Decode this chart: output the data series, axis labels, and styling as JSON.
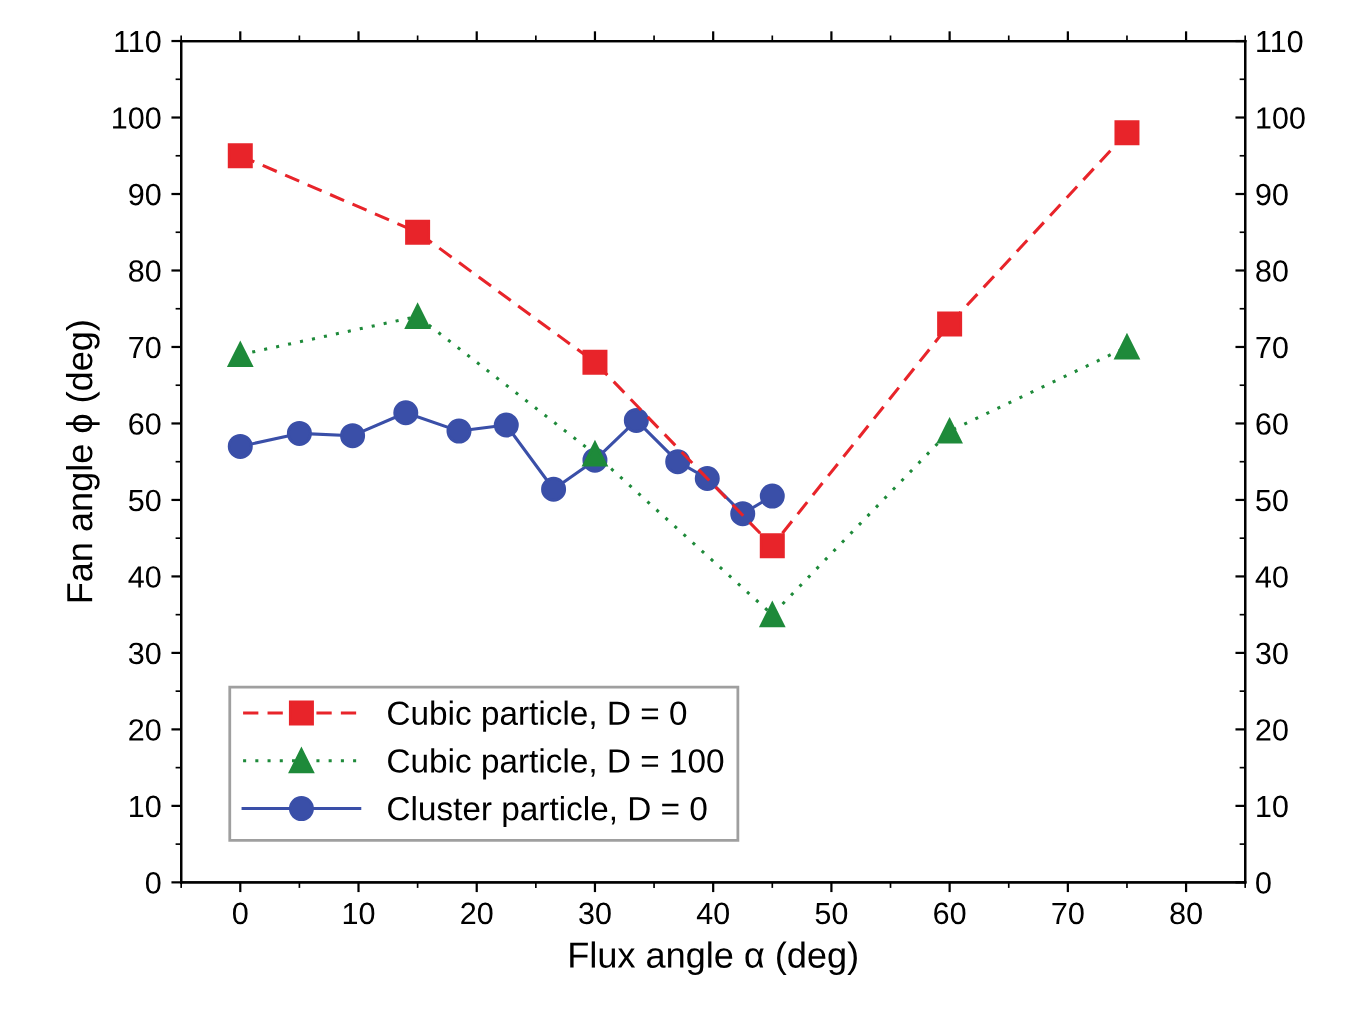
{
  "chart_data": {
    "type": "line",
    "xlabel": "Flux angle α (deg)",
    "ylabel": "Fan angle ϕ (deg)",
    "xlim": [
      -5,
      85
    ],
    "xticks": [
      0,
      10,
      20,
      30,
      40,
      50,
      60,
      70,
      80
    ],
    "ylim": [
      0,
      110
    ],
    "yticks": [
      0,
      10,
      20,
      30,
      40,
      50,
      60,
      70,
      80,
      90,
      100,
      110
    ],
    "y2lim": [
      0,
      110
    ],
    "y2ticks": [
      0,
      10,
      20,
      30,
      40,
      50,
      60,
      70,
      80,
      90,
      100,
      110
    ],
    "grid": false,
    "legend": "bottom left",
    "series": [
      {
        "name": "Cubic particle, D = 0",
        "color": "#e8242a",
        "marker": "square",
        "line_style": "dashed",
        "x": [
          0,
          15,
          30,
          45,
          60,
          75
        ],
        "values": [
          95,
          85,
          68,
          44,
          73,
          98
        ]
      },
      {
        "name": "Cubic particle, D = 100",
        "color": "#1e8a3a",
        "marker": "triangle",
        "line_style": "dotted",
        "x": [
          0,
          15,
          30,
          45,
          60,
          75
        ],
        "values": [
          69,
          74,
          56,
          35,
          59,
          70
        ]
      },
      {
        "name": "Cluster particle, D = 0",
        "color": "#3a4fa8",
        "marker": "circle",
        "line_style": "solid",
        "x": [
          0,
          5,
          9.5,
          14,
          18.5,
          22.5,
          26.5,
          30,
          33.5,
          37,
          39.5,
          42.5,
          45
        ],
        "values": [
          57,
          58.7,
          58.4,
          61.4,
          59,
          59.8,
          51.4,
          55.2,
          60.4,
          55,
          52.8,
          48.2,
          50.5
        ]
      }
    ]
  }
}
